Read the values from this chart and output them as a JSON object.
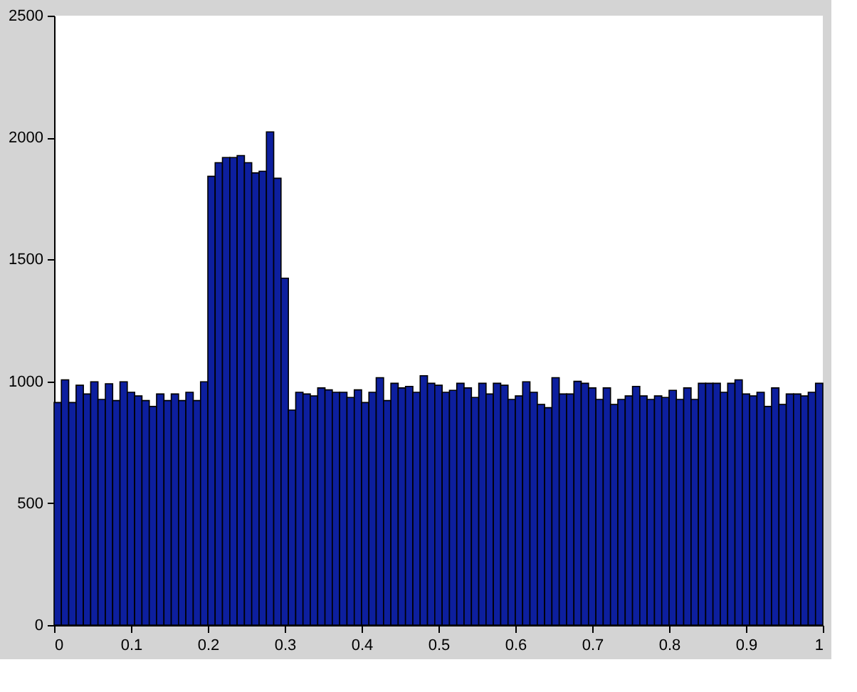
{
  "chart_data": {
    "type": "histogram",
    "color": "#0d1f9e",
    "bins": [
      0,
      0.0095,
      0.019,
      0.0286,
      0.0381,
      0.0476,
      0.0571,
      0.0667,
      0.0762,
      0.0857,
      0.0952,
      0.1048,
      0.1143,
      0.1238,
      0.1333,
      0.1429,
      0.1524,
      0.1619,
      0.1714,
      0.181,
      0.1905,
      0.2,
      0.2095,
      0.219,
      0.2286,
      0.2381,
      0.2476,
      0.2571,
      0.2667,
      0.2762,
      0.2857,
      0.2952,
      0.3048,
      0.3143,
      0.3238,
      0.3333,
      0.3429,
      0.3524,
      0.3619,
      0.3714,
      0.381,
      0.3905,
      0.4,
      0.4095,
      0.419,
      0.4286,
      0.4381,
      0.4476,
      0.4571,
      0.4667,
      0.4762,
      0.4857,
      0.4952,
      0.5048,
      0.5143,
      0.5238,
      0.5333,
      0.5429,
      0.5524,
      0.5619,
      0.5714,
      0.581,
      0.5905,
      0.6,
      0.6095,
      0.619,
      0.6286,
      0.6381,
      0.6476,
      0.6571,
      0.6667,
      0.6762,
      0.6857,
      0.6952,
      0.7048,
      0.7143,
      0.7238,
      0.7333,
      0.7429,
      0.7524,
      0.7619,
      0.7714,
      0.781,
      0.7905,
      0.8,
      0.8095,
      0.819,
      0.8286,
      0.8381,
      0.8476,
      0.8571,
      0.8667,
      0.8762,
      0.8857,
      0.8952,
      0.9048,
      0.9143,
      0.9238,
      0.9333,
      0.9429,
      0.9524,
      0.9619,
      0.9714,
      0.981,
      0.9905,
      1
    ],
    "values": [
      913,
      1006,
      913,
      984,
      948,
      998,
      926,
      990,
      921,
      998,
      955,
      940,
      921,
      897,
      948,
      921,
      948,
      921,
      955,
      921,
      998,
      1841,
      1897,
      1918,
      1918,
      1926,
      1897,
      1855,
      1862,
      2023,
      1833,
      1423,
      882,
      955,
      948,
      940,
      973,
      965,
      955,
      955,
      934,
      965,
      913,
      955,
      1015,
      921,
      992,
      973,
      979,
      955,
      1023,
      992,
      984,
      955,
      963,
      992,
      973,
      934,
      992,
      948,
      992,
      984,
      926,
      940,
      998,
      955,
      905,
      892,
      1015,
      948,
      948,
      1000,
      992,
      973,
      926,
      973,
      905,
      926,
      940,
      979,
      940,
      926,
      940,
      934,
      963,
      926,
      973,
      926,
      992,
      992,
      992,
      955,
      992,
      1006,
      948,
      940,
      955,
      897,
      973,
      905,
      948,
      948,
      940,
      955,
      992
    ],
    "xlim": [
      0,
      1
    ],
    "xticks": [
      0,
      0.1,
      0.2,
      0.3,
      0.4,
      0.5,
      0.6,
      0.7,
      0.8,
      0.9,
      1
    ],
    "ylim": [
      0,
      2500
    ],
    "yticks": [
      0,
      500,
      1000,
      1500,
      2000,
      2500
    ],
    "grid": false
  }
}
